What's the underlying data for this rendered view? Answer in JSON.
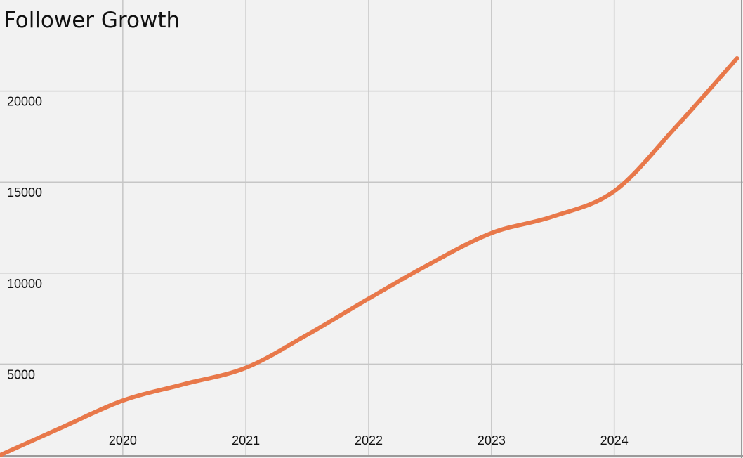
{
  "chart_data": {
    "type": "line",
    "title": "Follower Growth",
    "xlabel": "",
    "ylabel": "",
    "x_ticks": [
      "2020",
      "2021",
      "2022",
      "2023",
      "2024"
    ],
    "y_ticks": [
      "5000",
      "10000",
      "15000",
      "20000"
    ],
    "xlim": [
      "2019-01-01",
      "2025-01-01"
    ],
    "ylim": [
      0,
      25000
    ],
    "grid": true,
    "legend": "none",
    "series": [
      {
        "color": "#e8784a",
        "points": [
          {
            "x": "2019-01-01",
            "y": 0
          },
          {
            "x": "2019-07-01",
            "y": 1500
          },
          {
            "x": "2020-01-01",
            "y": 3000
          },
          {
            "x": "2020-07-01",
            "y": 3900
          },
          {
            "x": "2021-01-01",
            "y": 4800
          },
          {
            "x": "2021-07-01",
            "y": 6600
          },
          {
            "x": "2022-01-01",
            "y": 8600
          },
          {
            "x": "2022-07-01",
            "y": 10500
          },
          {
            "x": "2023-01-01",
            "y": 12200
          },
          {
            "x": "2023-07-01",
            "y": 13100
          },
          {
            "x": "2024-01-01",
            "y": 14500
          },
          {
            "x": "2024-07-01",
            "y": 18000
          },
          {
            "x": "2024-12-31",
            "y": 21800
          }
        ]
      }
    ]
  },
  "colors": {
    "background": "#f2f2f2",
    "grid": "#c6c6c6",
    "text": "#111111",
    "axis": "#9a9a9a",
    "line": "#e8784a"
  }
}
